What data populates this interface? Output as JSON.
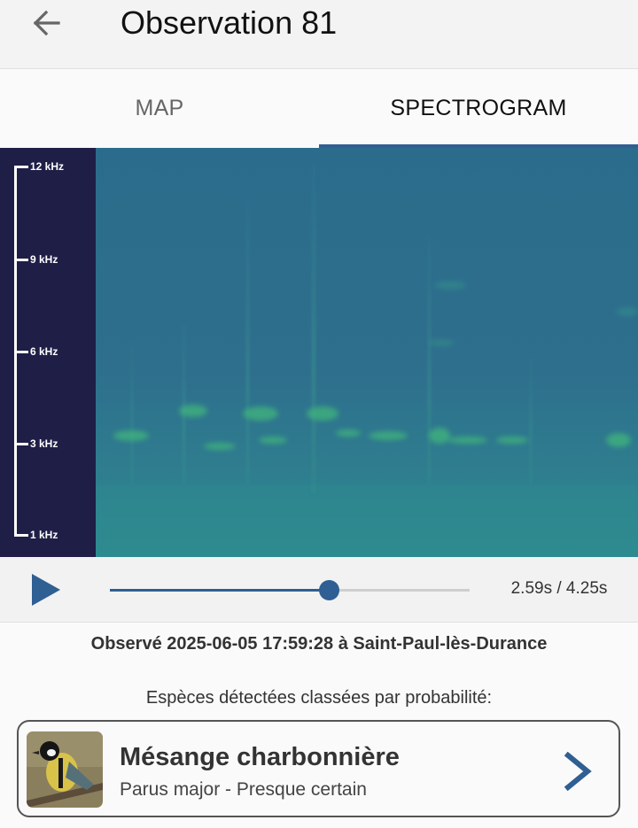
{
  "header": {
    "title": "Observation 81",
    "back_icon": "arrow-left-icon"
  },
  "tabs": [
    {
      "label": "MAP",
      "active": false
    },
    {
      "label": "SPECTROGRAM",
      "active": true
    }
  ],
  "spectrogram": {
    "freq_labels": [
      "12 kHz",
      "9 kHz",
      "6 kHz",
      "3 kHz",
      "1 kHz"
    ],
    "colors": {
      "axis_bg": "#1f1e47",
      "background": "#2e6e8e",
      "signal": "#3dae7c"
    }
  },
  "player": {
    "play_icon": "play-icon",
    "time": "2.59s / 4.25s",
    "progress": 0.609
  },
  "observation": {
    "text": "Observé 2025-06-05 17:59:28 à Saint-Paul-lès-Durance"
  },
  "detection": {
    "subtitle": "Espèces détectées classées par probabilité:",
    "species": [
      {
        "name": "Mésange charbonnière",
        "latin": "Parus major - Presque certain",
        "thumbnail_icon": "bird-icon",
        "chevron_icon": "chevron-right-icon"
      }
    ]
  },
  "colors": {
    "accent": "#2f5f93",
    "appbar": "#f3f3f3"
  }
}
